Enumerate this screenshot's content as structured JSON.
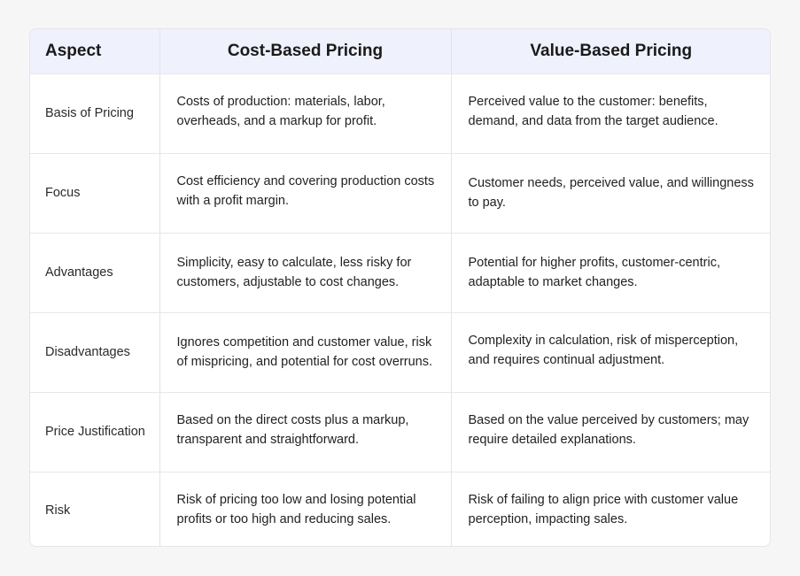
{
  "table": {
    "headers": [
      "Aspect",
      "Cost-Based Pricing",
      "Value-Based Pricing"
    ],
    "rows": [
      {
        "aspect": "Basis of Pricing",
        "cost": "Costs of production: materials, labor, overheads, and a markup for profit.",
        "value": "Perceived value to the customer: benefits, demand, and data from the target audience."
      },
      {
        "aspect": "Focus",
        "cost": "Cost efficiency and covering production costs with a profit margin.",
        "value": "Customer needs, perceived value, and willingness to pay."
      },
      {
        "aspect": "Advantages",
        "cost": "Simplicity, easy to calculate, less risky for customers, adjustable to cost changes.",
        "value": "Potential for higher profits, customer-centric, adaptable to market changes."
      },
      {
        "aspect": "Disadvantages",
        "cost": "Ignores competition and customer value, risk of mispricing, and potential for cost overruns.",
        "value": "Complexity in calculation, risk of misperception, and requires continual adjustment."
      },
      {
        "aspect": "Price Justification",
        "cost": "Based on the direct costs plus a markup, transparent and straightforward.",
        "value": "Based on the value perceived by customers; may require detailed explanations."
      },
      {
        "aspect": "Risk",
        "cost": "Risk of pricing too low and losing potential profits or too high and reducing sales.",
        "value": "Risk of failing to align price with customer value perception, impacting sales."
      }
    ]
  }
}
